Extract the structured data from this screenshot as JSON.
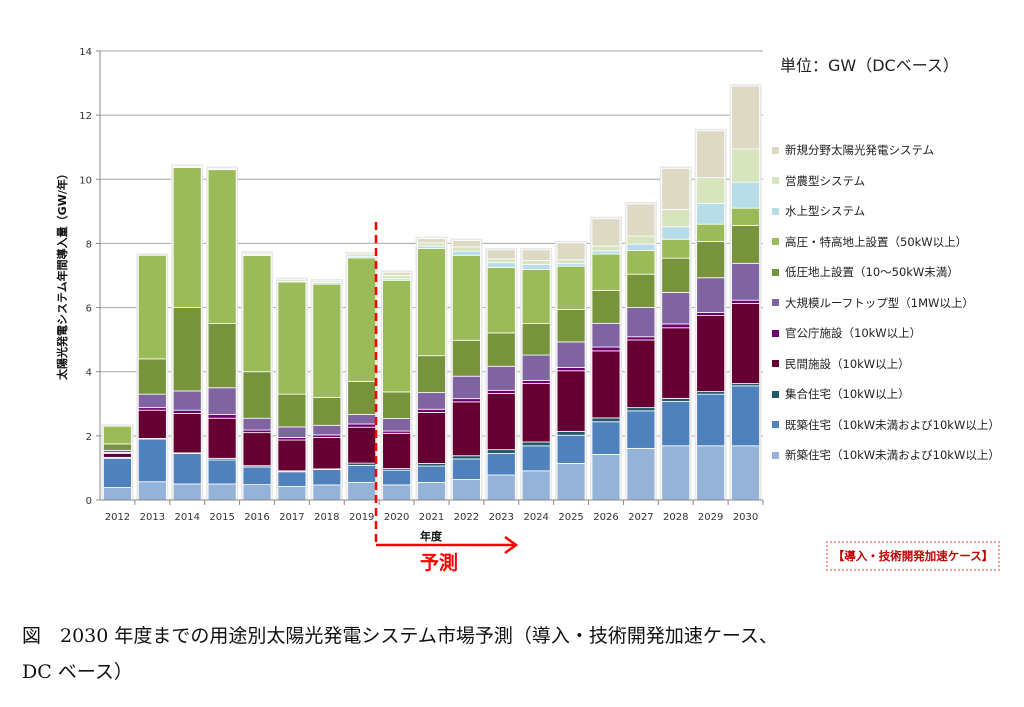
{
  "chart_data": {
    "type": "bar",
    "stacked": true,
    "title": "",
    "unit_note": "単位：GW（DCベース）",
    "xlabel": "年度",
    "ylabel": "太陽光発電システム年間導入量（GW/年）",
    "ylim": [
      0,
      14
    ],
    "yticks": [
      0,
      2,
      4,
      6,
      8,
      10,
      12,
      14
    ],
    "grid": true,
    "legend_position": "right",
    "categories": [
      "2012",
      "2013",
      "2014",
      "2015",
      "2016",
      "2017",
      "2018",
      "2019",
      "2020",
      "2021",
      "2022",
      "2023",
      "2024",
      "2025",
      "2026",
      "2027",
      "2028",
      "2029",
      "2030"
    ],
    "series": [
      {
        "name": "新築住宅（10kW未満および10kW以上）",
        "color": "#95b3d7",
        "values": [
          0.39,
          0.57,
          0.5,
          0.5,
          0.48,
          0.42,
          0.47,
          0.55,
          0.47,
          0.55,
          0.64,
          0.78,
          0.91,
          1.14,
          1.42,
          1.61,
          1.69,
          1.69,
          1.69
        ]
      },
      {
        "name": "既築住宅（10kW未満および10kW以上）",
        "color": "#4f81bd",
        "values": [
          0.91,
          1.33,
          0.95,
          0.75,
          0.55,
          0.46,
          0.48,
          0.53,
          0.46,
          0.51,
          0.64,
          0.67,
          0.78,
          0.88,
          1.02,
          1.17,
          1.38,
          1.61,
          1.87
        ]
      },
      {
        "name": "集合住宅（10kW以上）",
        "color": "#215968",
        "values": [
          0.03,
          0.02,
          0.02,
          0.05,
          0.04,
          0.03,
          0.02,
          0.07,
          0.05,
          0.08,
          0.1,
          0.12,
          0.12,
          0.12,
          0.12,
          0.1,
          0.1,
          0.08,
          0.07
        ]
      },
      {
        "name": "民間施設（10kW以上）",
        "color": "#660033",
        "values": [
          0.12,
          0.88,
          1.23,
          1.25,
          1.03,
          0.96,
          0.98,
          1.12,
          1.1,
          1.59,
          1.68,
          1.75,
          1.82,
          1.89,
          2.09,
          2.11,
          2.2,
          2.37,
          2.5
        ]
      },
      {
        "name": "官公庁施設（10kW以上）",
        "color": "#700070",
        "values": [
          0.03,
          0.08,
          0.1,
          0.12,
          0.08,
          0.08,
          0.08,
          0.1,
          0.07,
          0.1,
          0.1,
          0.1,
          0.1,
          0.1,
          0.12,
          0.1,
          0.12,
          0.1,
          0.1
        ]
      },
      {
        "name": "大規模ルーフトップ型（1MW以上）",
        "color": "#8064a2",
        "values": [
          0.07,
          0.42,
          0.6,
          0.83,
          0.37,
          0.33,
          0.3,
          0.3,
          0.39,
          0.52,
          0.7,
          0.75,
          0.79,
          0.8,
          0.74,
          0.91,
          0.98,
          1.08,
          1.15
        ]
      },
      {
        "name": "低圧地上設置（10～50kW未満）",
        "color": "#77933c",
        "values": [
          0.2,
          1.1,
          2.6,
          2.0,
          1.45,
          1.02,
          0.87,
          1.03,
          0.83,
          1.15,
          1.12,
          1.04,
          0.98,
          1.01,
          1.02,
          1.04,
          1.07,
          1.13,
          1.18
        ]
      },
      {
        "name": "高圧・特高地上設置（50kW以上）",
        "color": "#9bbb59",
        "values": [
          0.55,
          3.23,
          4.37,
          4.8,
          3.62,
          3.5,
          3.53,
          3.85,
          3.48,
          3.34,
          2.65,
          2.04,
          1.69,
          1.35,
          1.14,
          0.74,
          0.59,
          0.54,
          0.54
        ]
      },
      {
        "name": "水上型システム",
        "color": "#b7dde8",
        "values": [
          0,
          0,
          0.01,
          0.01,
          0.03,
          0.02,
          0.05,
          0.05,
          0.05,
          0.08,
          0.13,
          0.15,
          0.15,
          0.08,
          0.1,
          0.2,
          0.39,
          0.65,
          0.81
        ]
      },
      {
        "name": "営農型システム",
        "color": "#d7e4bd",
        "values": [
          0,
          0,
          0.02,
          0.03,
          0.05,
          0.05,
          0.05,
          0.07,
          0.1,
          0.1,
          0.13,
          0.12,
          0.13,
          0.12,
          0.15,
          0.25,
          0.54,
          0.8,
          1.04
        ]
      },
      {
        "name": "新規分野太陽光発電システム",
        "color": "#ddd9c4",
        "values": [
          0,
          0,
          0,
          0,
          0,
          0,
          0,
          0,
          0.1,
          0.13,
          0.2,
          0.28,
          0.33,
          0.53,
          0.85,
          1.0,
          1.28,
          1.46,
          1.96
        ]
      }
    ],
    "annotations": {
      "forecast_label": "予測",
      "forecast_start": "2020",
      "forecast_color": "#ff0000",
      "case_label": "【導入・技術開発加速ケース】"
    }
  },
  "caption": {
    "line1": "図　2030 年度までの用途別太陽光発電システム市場予測（導入・技術開発加速ケース、",
    "line2": "DC ベース）"
  }
}
